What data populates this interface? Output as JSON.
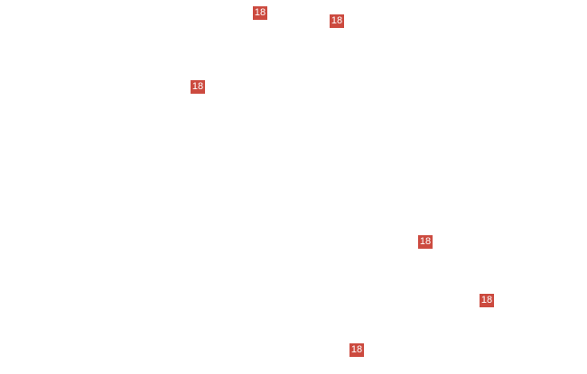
{
  "map": {
    "shield_color": "#cc4a3f",
    "route_markers": [
      {
        "label": "18"
      },
      {
        "label": "18"
      },
      {
        "label": "18"
      },
      {
        "label": "18"
      },
      {
        "label": "18"
      },
      {
        "label": "18"
      }
    ]
  }
}
